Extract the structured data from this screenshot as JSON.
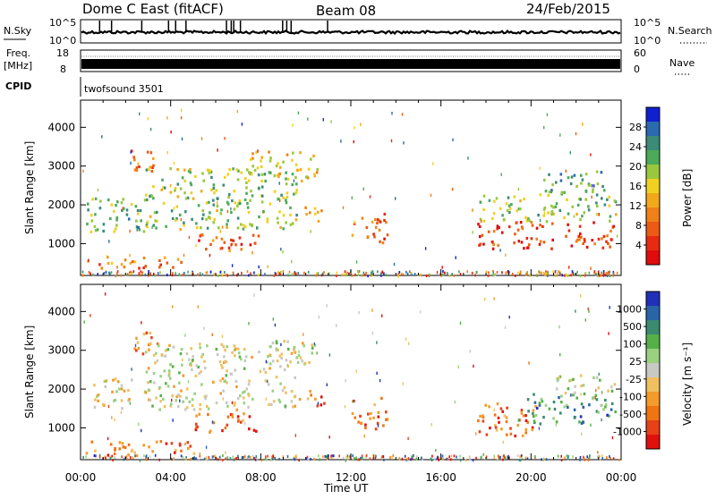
{
  "header": {
    "radar": "Dome C East (fitACF)",
    "beam": "Beam 08",
    "date": "24/Feb/2015"
  },
  "strips": {
    "nsky_label": "N.Sky",
    "nsky_ticks": [
      "10^5",
      "10^0"
    ],
    "nsearch_label": "N.Search",
    "nsearch_ticks": [
      "10^5",
      "10^0"
    ],
    "freq_label_line1": "Freq.",
    "freq_label_line2": "[MHz]",
    "freq_ticks": [
      "18",
      "8"
    ],
    "nave_label": "Nave",
    "nave_ticks": [
      "60",
      "0"
    ],
    "cpid_label": "CPID",
    "cpid_value": "twofsound 3501"
  },
  "chart_data": [
    {
      "type": "heatmap",
      "name": "power",
      "ylabel": "Slant Range [km]",
      "yticks": [
        "4000",
        "3000",
        "2000",
        "1000"
      ],
      "xticks": [
        "00:00",
        "04:00",
        "08:00",
        "12:00",
        "16:00",
        "20:00",
        "00:00"
      ],
      "colorbar_label": "Power [dB]",
      "colorbar_ticks": [
        "28",
        "24",
        "20",
        "16",
        "12",
        "8",
        "4"
      ],
      "colors": [
        "#1020d0",
        "#2a6ab0",
        "#3c8a78",
        "#4caa5a",
        "#9ac83c",
        "#f0d020",
        "#f3a81a",
        "#f08018",
        "#ee5a14",
        "#e82a10",
        "#e00c0c"
      ],
      "blobs": [
        {
          "t0": 0.2,
          "t1": 3.0,
          "r0": 1300,
          "r1": 2200,
          "level": 0.35
        },
        {
          "t0": 0.2,
          "t1": 4.6,
          "r0": 400,
          "r1": 700,
          "level": 0.7
        },
        {
          "t0": 2.2,
          "t1": 3.3,
          "r0": 2800,
          "r1": 3500,
          "level": 0.7
        },
        {
          "t0": 2.8,
          "t1": 9.8,
          "r0": 1400,
          "r1": 3000,
          "level": 0.4
        },
        {
          "t0": 5.2,
          "t1": 7.2,
          "r0": 800,
          "r1": 1300,
          "level": 0.75
        },
        {
          "t0": 6.6,
          "t1": 8.0,
          "r0": 1000,
          "r1": 1300,
          "level": 0.9
        },
        {
          "t0": 7.5,
          "t1": 10.5,
          "r0": 2700,
          "r1": 3400,
          "level": 0.55
        },
        {
          "t0": 9.5,
          "t1": 10.8,
          "r0": 1600,
          "r1": 2000,
          "level": 0.55
        },
        {
          "t0": 12.0,
          "t1": 13.6,
          "r0": 1000,
          "r1": 1800,
          "level": 0.75
        },
        {
          "t0": 17.6,
          "t1": 23.8,
          "r0": 900,
          "r1": 1600,
          "level": 0.85
        },
        {
          "t0": 17.6,
          "t1": 23.8,
          "r0": 1600,
          "r1": 2300,
          "level": 0.4
        },
        {
          "t0": 20.5,
          "t1": 23.6,
          "r0": 2300,
          "r1": 2900,
          "level": 0.3
        }
      ]
    },
    {
      "type": "heatmap",
      "name": "velocity",
      "ylabel": "Slant Range [km]",
      "yticks": [
        "4000",
        "3000",
        "2000",
        "1000"
      ],
      "xticks": [
        "00:00",
        "04:00",
        "08:00",
        "12:00",
        "16:00",
        "20:00",
        "00:00"
      ],
      "xlabel": "Time UT",
      "colorbar_label": "Velocity [m s⁻¹]",
      "colorbar_ticks": [
        "1000",
        "500",
        "100",
        "25",
        "-25",
        "-100",
        "-500",
        "-1000"
      ],
      "colors": [
        "#2030b8",
        "#2a64a8",
        "#3a8a70",
        "#56b048",
        "#9ad080",
        "#c8c8c4",
        "#f0c060",
        "#f39a2a",
        "#ef7412",
        "#e84018",
        "#e0100c"
      ],
      "blobs": [
        {
          "t0": 0.2,
          "t1": 5.0,
          "r0": 300,
          "r1": 700,
          "level": 0.78
        },
        {
          "t0": 0.5,
          "t1": 2.4,
          "r0": 1500,
          "r1": 2300,
          "level": 0.55
        },
        {
          "t0": 2.2,
          "t1": 3.4,
          "r0": 2800,
          "r1": 3500,
          "level": 0.75
        },
        {
          "t0": 2.8,
          "t1": 9.5,
          "r0": 1500,
          "r1": 3200,
          "level": 0.5
        },
        {
          "t0": 5.0,
          "t1": 8.0,
          "r0": 900,
          "r1": 1400,
          "level": 0.8
        },
        {
          "t0": 8.2,
          "t1": 10.5,
          "r0": 2600,
          "r1": 3300,
          "level": 0.5
        },
        {
          "t0": 9.6,
          "t1": 10.8,
          "r0": 1600,
          "r1": 2000,
          "level": 0.8
        },
        {
          "t0": 12.0,
          "t1": 13.6,
          "r0": 1000,
          "r1": 1800,
          "level": 0.78
        },
        {
          "t0": 17.6,
          "t1": 20.2,
          "r0": 800,
          "r1": 1700,
          "level": 0.8
        },
        {
          "t0": 19.8,
          "t1": 23.8,
          "r0": 1100,
          "r1": 1900,
          "level": 0.25
        },
        {
          "t0": 21.0,
          "t1": 23.8,
          "r0": 1900,
          "r1": 2400,
          "level": 0.45
        }
      ]
    }
  ]
}
